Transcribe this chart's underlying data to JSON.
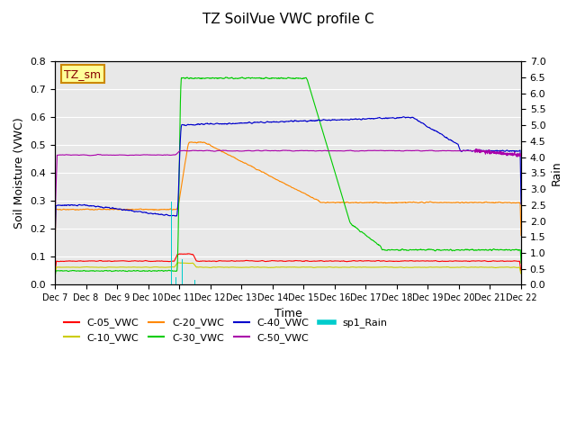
{
  "title": "TZ SoilVue VWC profile C",
  "xlabel": "Time",
  "ylabel_left": "Soil Moisture (VWC)",
  "ylabel_right": "Rain",
  "ylim_left": [
    0.0,
    0.8
  ],
  "ylim_right": [
    0.0,
    7.0
  ],
  "yticks_left": [
    0.0,
    0.1,
    0.2,
    0.3,
    0.4,
    0.5,
    0.6,
    0.7,
    0.8
  ],
  "yticks_right": [
    0.0,
    0.5,
    1.0,
    1.5,
    2.0,
    2.5,
    3.0,
    3.5,
    4.0,
    4.5,
    5.0,
    5.5,
    6.0,
    6.5,
    7.0
  ],
  "xtick_labels": [
    "Dec 7",
    "Dec 8",
    "Dec 9",
    "Dec 10",
    "Dec 11",
    "Dec 12",
    "Dec 13",
    "Dec 14",
    "Dec 15",
    "Dec 16",
    "Dec 17",
    "Dec 18",
    "Dec 19",
    "Dec 20",
    "Dec 21",
    "Dec 22"
  ],
  "colors": {
    "C05": "#ff0000",
    "C10": "#cccc00",
    "C20": "#ff8800",
    "C30": "#00cc00",
    "C40": "#0000cc",
    "C50": "#aa00aa",
    "Rain": "#00cccc"
  },
  "bg_color": "#e8e8e8",
  "legend_box_color": "#ffff99",
  "legend_box_border": "#cc8800"
}
